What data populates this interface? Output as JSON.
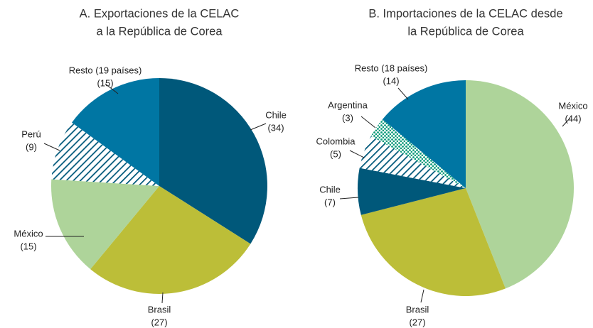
{
  "chart_data": [
    {
      "type": "pie",
      "title": [
        "A. Exportaciones de la CELAC",
        "a la República de Corea"
      ],
      "categories": [
        "Chile",
        "Brasil",
        "México",
        "Perú",
        "Resto (19 países)"
      ],
      "values": [
        34,
        27,
        15,
        9,
        15
      ],
      "value_labels": [
        "(34)",
        "(27)",
        "(15)",
        "(9)",
        "(15)"
      ],
      "colors": [
        "#00587a",
        "#bcbe38",
        "#aed49a",
        "#00587a",
        "#0076a3"
      ],
      "fill_styles": [
        "solid",
        "solid",
        "solid",
        "hatch",
        "solid"
      ]
    },
    {
      "type": "pie",
      "title": [
        "B. Importaciones de la CELAC desde",
        "la República de Corea"
      ],
      "categories": [
        "México",
        "Brasil",
        "Chile",
        "Colombia",
        "Argentina",
        "Resto (18 países)"
      ],
      "values": [
        44,
        27,
        7,
        5,
        3,
        14
      ],
      "value_labels": [
        "(44)",
        "(27)",
        "(7)",
        "(5)",
        "(3)",
        "(14)"
      ],
      "colors": [
        "#aed49a",
        "#bcbe38",
        "#00587a",
        "#00587a",
        "#0a9a7a",
        "#0076a3"
      ],
      "fill_styles": [
        "solid",
        "solid",
        "solid",
        "hatch",
        "dots",
        "solid"
      ]
    }
  ]
}
